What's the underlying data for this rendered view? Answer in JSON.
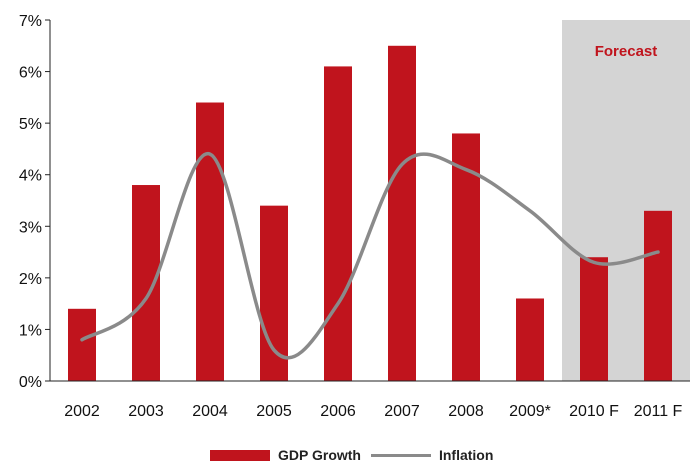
{
  "chart_data": {
    "type": "bar",
    "categories": [
      "2002",
      "2003",
      "2004",
      "2005",
      "2006",
      "2007",
      "2008",
      "2009*",
      "2010 F",
      "2011 F"
    ],
    "series": [
      {
        "name": "GDP Growth",
        "type": "bar",
        "color": "#c0141d",
        "values": [
          1.4,
          3.8,
          5.4,
          3.4,
          6.1,
          6.5,
          4.8,
          1.6,
          2.4,
          3.3
        ]
      },
      {
        "name": "Inflation",
        "type": "line",
        "color": "#8a8a8a",
        "values": [
          0.8,
          1.6,
          4.4,
          0.6,
          1.5,
          4.2,
          4.1,
          3.3,
          2.3,
          2.5
        ]
      }
    ],
    "ylim": [
      0,
      7
    ],
    "yticks": [
      "0%",
      "1%",
      "2%",
      "3%",
      "4%",
      "5%",
      "6%",
      "7%"
    ],
    "forecast_region": {
      "label": "Forecast",
      "categories": [
        "2010 F",
        "2011 F"
      ],
      "color": "#d4d4d4",
      "label_color": "#c0141d"
    },
    "legend_position": "bottom",
    "grid": false
  }
}
